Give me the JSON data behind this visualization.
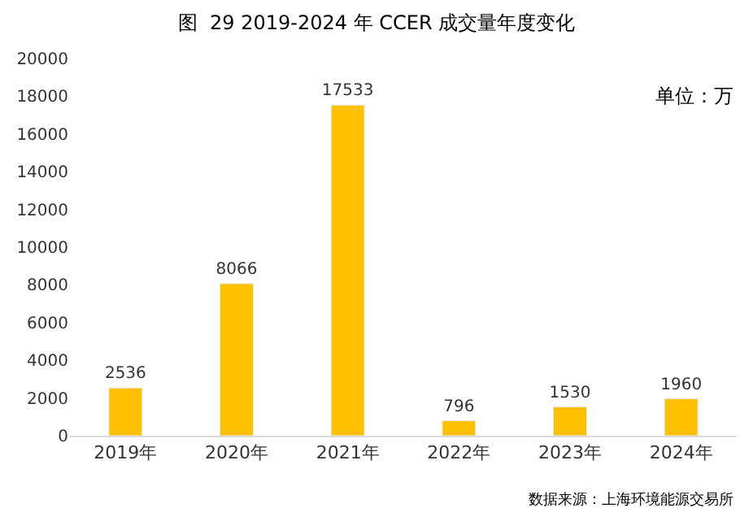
{
  "chart_data": {
    "type": "bar",
    "title": "图  29 2019-2024 年 CCER 成交量年度变化",
    "categories": [
      "2019年",
      "2020年",
      "2021年",
      "2022年",
      "2023年",
      "2024年"
    ],
    "values": [
      2536,
      8066,
      17533,
      796,
      1530,
      1960
    ],
    "color": "#ffc000",
    "data_labels": true,
    "ylim": [
      0,
      20000
    ],
    "yticks": [
      0,
      2000,
      4000,
      6000,
      8000,
      10000,
      12000,
      14000,
      16000,
      18000,
      20000
    ],
    "grid": false,
    "annotations": [
      "单位：万",
      "数据来源：上海环境能源交易所"
    ]
  }
}
